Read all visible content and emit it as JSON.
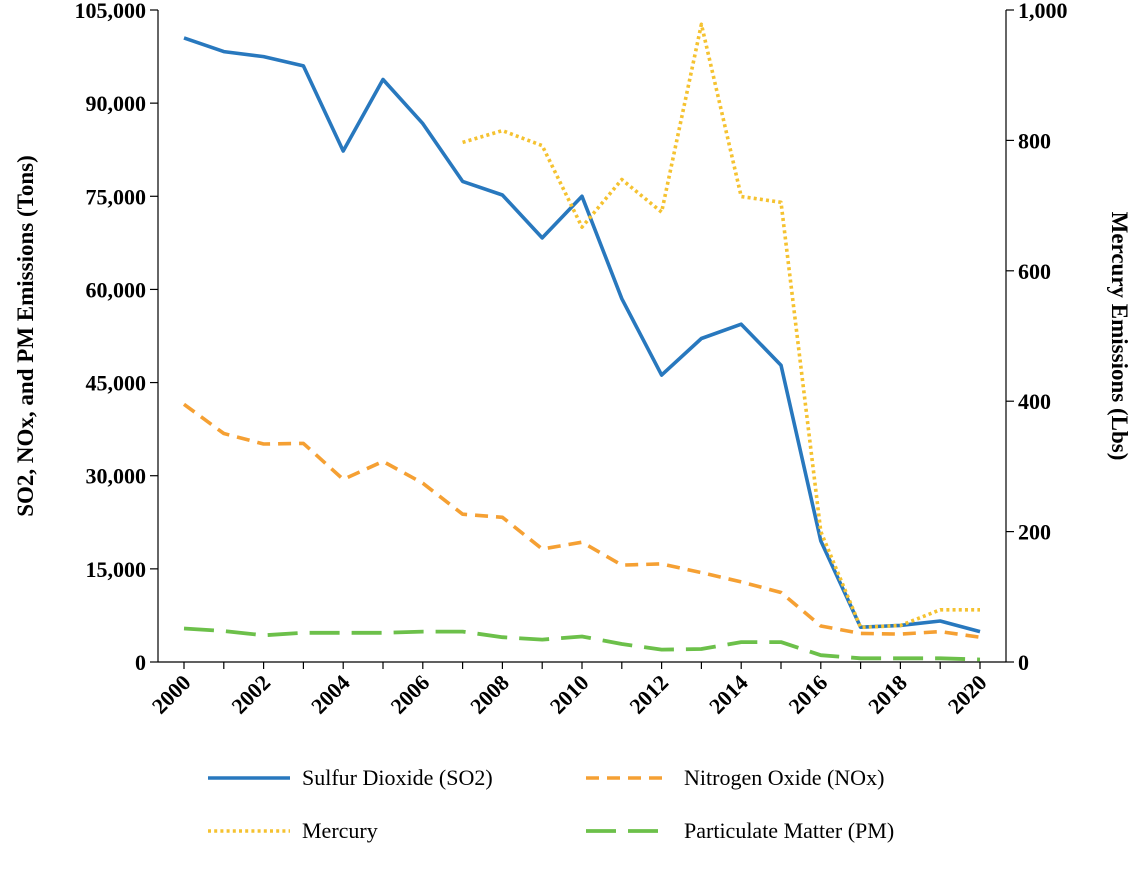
{
  "chart_data": {
    "type": "line",
    "title": "",
    "x": [
      2000,
      2001,
      2002,
      2003,
      2004,
      2005,
      2006,
      2007,
      2008,
      2009,
      2010,
      2011,
      2012,
      2013,
      2014,
      2015,
      2016,
      2017,
      2018,
      2019,
      2020
    ],
    "x_tick_labels": [
      "2000",
      "2002",
      "2004",
      "2006",
      "2008",
      "2010",
      "2012",
      "2014",
      "2016",
      "2018",
      "2020"
    ],
    "ylabel_left": "SO2, NOx, and PM Emissions (Tons)",
    "ylabel_right": "Mercury Emissions (Lbs)",
    "ylim_left": [
      0,
      105000
    ],
    "ylim_right": [
      0,
      1000
    ],
    "y_ticks_left": [
      "0",
      "15,000",
      "30,000",
      "45,000",
      "60,000",
      "75,000",
      "90,000",
      "105,000"
    ],
    "y_ticks_right": [
      "0",
      "200",
      "400",
      "600",
      "800",
      "1,000"
    ],
    "series": [
      {
        "name": "Sulfur Dioxide (SO2)",
        "axis": "left",
        "color": "#2878be",
        "dash": "solid",
        "values": [
          100500,
          98300,
          97500,
          96000,
          82300,
          93800,
          86700,
          77400,
          75200,
          68300,
          75000,
          58500,
          46200,
          52100,
          54400,
          47800,
          19500,
          5600,
          5900,
          6600,
          4900
        ]
      },
      {
        "name": "Nitrogen Oxide (NOx)",
        "axis": "left",
        "color": "#f5a033",
        "dash": "dashed",
        "values": [
          41500,
          36800,
          35100,
          35200,
          29400,
          32300,
          28800,
          23800,
          23300,
          18200,
          19300,
          15600,
          15800,
          14400,
          12900,
          11200,
          5800,
          4600,
          4500,
          4900,
          4000
        ]
      },
      {
        "name": "Mercury",
        "axis": "right",
        "color": "#f5c230",
        "dash": "dotted",
        "values": [
          null,
          null,
          null,
          null,
          null,
          null,
          null,
          797,
          815,
          792,
          667,
          740,
          690,
          978,
          714,
          705,
          200,
          53,
          56,
          80,
          80
        ]
      },
      {
        "name": "Particulate Matter (PM)",
        "axis": "left",
        "color": "#6cc04a",
        "dash": "longdash",
        "values": [
          5400,
          5000,
          4300,
          4700,
          4700,
          4700,
          4900,
          4900,
          4000,
          3600,
          4100,
          2900,
          2000,
          2100,
          3200,
          3200,
          1100,
          600,
          600,
          600,
          400
        ]
      }
    ],
    "legend": {
      "placement": "bottom",
      "entries": [
        "Sulfur Dioxide (SO2)",
        "Nitrogen Oxide (NOx)",
        "Mercury",
        "Particulate Matter (PM)"
      ]
    }
  }
}
